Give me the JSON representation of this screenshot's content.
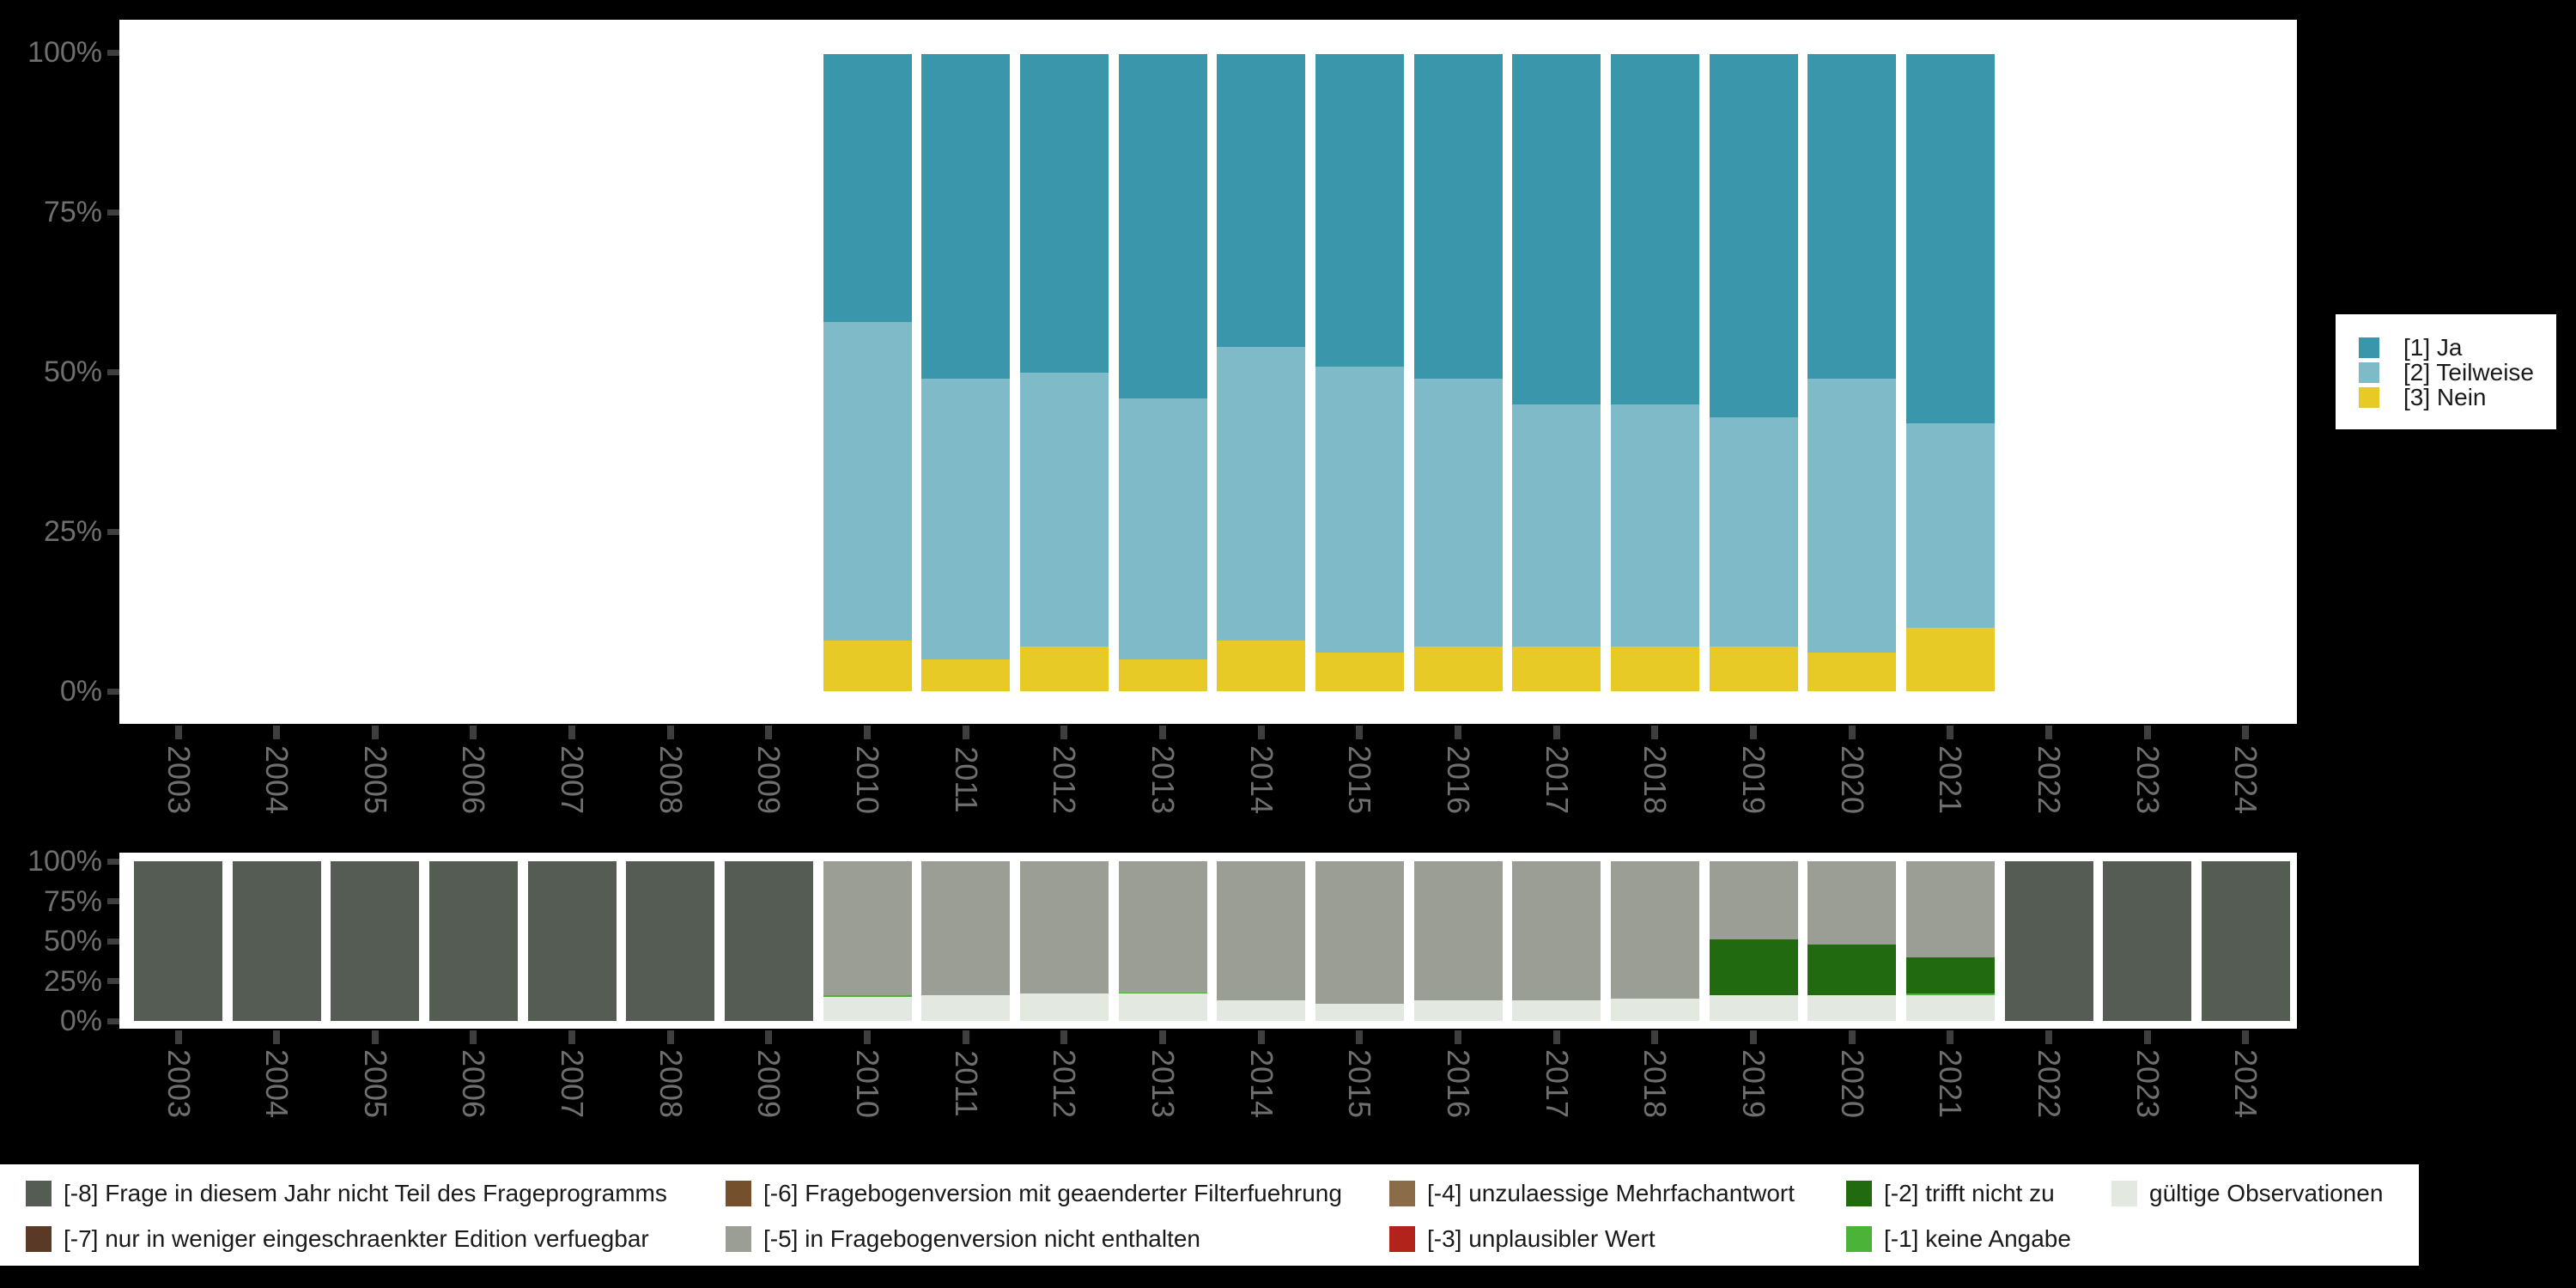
{
  "figure": {
    "background": "#000000",
    "panel_background": "#ffffff",
    "axis_text_color": "#6f6f6f",
    "tick_color": "#3e3e3e"
  },
  "legend_right": {
    "items": [
      {
        "label": "[1] Ja",
        "color": "#3a96ab"
      },
      {
        "label": "[2] Teilweise",
        "color": "#7fbac8"
      },
      {
        "label": "[3] Nein",
        "color": "#e8ca26"
      }
    ]
  },
  "legend_bottom": {
    "items": [
      {
        "label": "[-8] Frage in diesem Jahr nicht Teil des Frageprogramms",
        "color": "#545c54"
      },
      {
        "label": "[-7] nur in weniger eingeschraenkter Edition verfuegbar",
        "color": "#5a3a27"
      },
      {
        "label": "[-6] Fragebogenversion mit geaenderter Filterfuehrung",
        "color": "#74502c"
      },
      {
        "label": "[-5] in Fragebogenversion nicht enthalten",
        "color": "#9a9e95"
      },
      {
        "label": "[-4] unzulaessige Mehrfachantwort",
        "color": "#8a6c49"
      },
      {
        "label": "[-3] unplausibler Wert",
        "color": "#b2241b"
      },
      {
        "label": "[-2] trifft nicht zu",
        "color": "#216a10"
      },
      {
        "label": "[-1] keine Angabe",
        "color": "#4bb438"
      },
      {
        "label": "gültige Observationen",
        "color": "#e3e8e0"
      }
    ]
  },
  "chart_data": [
    {
      "id": "answer-shares",
      "type": "bar",
      "stacked": true,
      "unit": "percent",
      "ylim": [
        0,
        100
      ],
      "grid": false,
      "legend_position": "right",
      "y_ticks": [
        "100%",
        "75%",
        "50%",
        "25%",
        "0%"
      ],
      "categories": [
        "2003",
        "2004",
        "2005",
        "2006",
        "2007",
        "2008",
        "2009",
        "2010",
        "2011",
        "2012",
        "2013",
        "2014",
        "2015",
        "2016",
        "2017",
        "2018",
        "2019",
        "2020",
        "2021",
        "2022",
        "2023",
        "2024"
      ],
      "series_bottom_up": [
        {
          "key": "nein",
          "name": "[3] Nein",
          "color": "#e8ca26",
          "values": [
            null,
            null,
            null,
            null,
            null,
            null,
            null,
            8,
            5,
            7,
            5,
            8,
            6,
            7,
            7,
            7,
            7,
            6,
            10,
            null,
            null,
            null
          ]
        },
        {
          "key": "teilweise",
          "name": "[2] Teilweise",
          "color": "#7fbac8",
          "values": [
            null,
            null,
            null,
            null,
            null,
            null,
            null,
            50,
            44,
            43,
            41,
            46,
            45,
            42,
            38,
            38,
            36,
            43,
            32,
            null,
            null,
            null
          ]
        },
        {
          "key": "ja",
          "name": "[1] Ja",
          "color": "#3a96ab",
          "values": [
            null,
            null,
            null,
            null,
            null,
            null,
            null,
            42,
            51,
            50,
            54,
            46,
            49,
            51,
            55,
            55,
            57,
            51,
            58,
            null,
            null,
            null
          ]
        }
      ]
    },
    {
      "id": "missing-values",
      "type": "bar",
      "stacked": true,
      "unit": "percent",
      "ylim": [
        0,
        100
      ],
      "grid": false,
      "legend_position": "bottom",
      "y_ticks": [
        "100%",
        "75%",
        "50%",
        "25%",
        "0%"
      ],
      "categories": [
        "2003",
        "2004",
        "2005",
        "2006",
        "2007",
        "2008",
        "2009",
        "2010",
        "2011",
        "2012",
        "2013",
        "2014",
        "2015",
        "2016",
        "2017",
        "2018",
        "2019",
        "2020",
        "2021",
        "2022",
        "2023",
        "2024"
      ],
      "series_bottom_up": [
        {
          "key": "gueltige-observationen",
          "name": "gültige Observationen",
          "color": "#e3e8e0",
          "values": [
            null,
            null,
            null,
            null,
            null,
            null,
            null,
            15,
            16,
            17,
            17,
            13,
            11,
            13,
            13,
            14,
            16,
            16,
            16,
            null,
            null,
            null
          ]
        },
        {
          "key": "keine-angabe",
          "name": "[-1] keine Angabe",
          "color": "#4bb438",
          "values": [
            null,
            null,
            null,
            null,
            null,
            null,
            null,
            1,
            null,
            null,
            1,
            null,
            null,
            null,
            null,
            null,
            null,
            null,
            1,
            null,
            null,
            null
          ]
        },
        {
          "key": "trifft-nicht-zu",
          "name": "[-2] trifft nicht zu",
          "color": "#216a10",
          "values": [
            null,
            null,
            null,
            null,
            null,
            null,
            null,
            null,
            null,
            null,
            null,
            null,
            null,
            null,
            null,
            null,
            35,
            32,
            23,
            null,
            null,
            null
          ]
        },
        {
          "key": "nicht-enthalten",
          "name": "[-5] in Fragebogenversion nicht enthalten",
          "color": "#9a9e95",
          "values": [
            null,
            null,
            null,
            null,
            null,
            null,
            null,
            84,
            84,
            83,
            82,
            87,
            89,
            87,
            87,
            86,
            49,
            52,
            60,
            null,
            null,
            null
          ]
        },
        {
          "key": "nicht-teil-frageprogramm",
          "name": "[-8] Frage in diesem Jahr nicht Teil des Frageprogramms",
          "color": "#545c54",
          "values": [
            100,
            100,
            100,
            100,
            100,
            100,
            100,
            null,
            null,
            null,
            null,
            null,
            null,
            null,
            null,
            null,
            null,
            null,
            null,
            100,
            100,
            100
          ]
        }
      ]
    }
  ]
}
